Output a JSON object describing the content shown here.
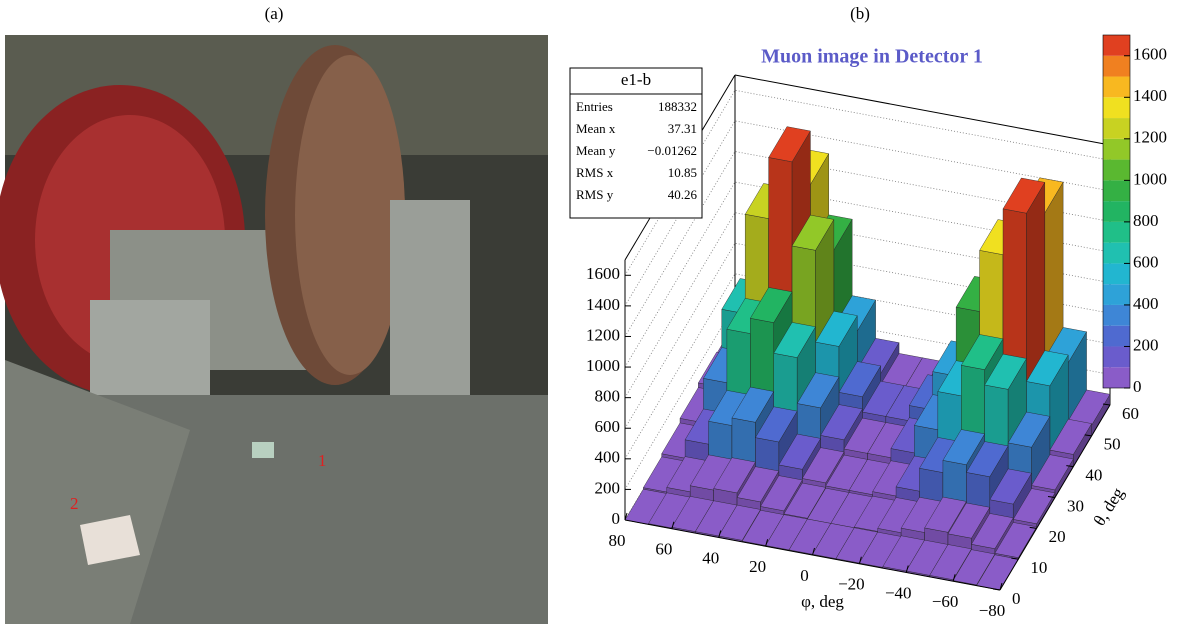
{
  "panel_a": {
    "label": "(a)",
    "markers": [
      "1",
      "2"
    ]
  },
  "chart_data": {
    "type": "lego",
    "panel_label": "(b)",
    "title": "Muon image in Detector 1",
    "x_label": "φ, deg",
    "y_label": "θ, deg",
    "x_bins": [
      80,
      70,
      60,
      50,
      40,
      30,
      20,
      10,
      0,
      -10,
      -20,
      -30,
      -40,
      -50,
      -60,
      -70,
      -80
    ],
    "y_bins": [
      0,
      10,
      20,
      30,
      40,
      50,
      60
    ],
    "values": [
      [
        0,
        5,
        10,
        10,
        10,
        5,
        5,
        5,
        5,
        5,
        5,
        10,
        10,
        10,
        5,
        0
      ],
      [
        10,
        40,
        80,
        90,
        60,
        30,
        10,
        5,
        5,
        10,
        30,
        60,
        90,
        80,
        40,
        10
      ],
      [
        30,
        150,
        300,
        350,
        250,
        100,
        40,
        20,
        20,
        40,
        100,
        250,
        330,
        280,
        130,
        30
      ],
      [
        60,
        350,
        700,
        800,
        600,
        300,
        120,
        60,
        60,
        120,
        300,
        550,
        750,
        650,
        300,
        50
      ],
      [
        90,
        600,
        1250,
        1650,
        1100,
        500,
        200,
        100,
        100,
        200,
        450,
        900,
        1300,
        1600,
        500,
        80
      ],
      [
        80,
        500,
        1000,
        1300,
        900,
        400,
        150,
        80,
        80,
        150,
        350,
        700,
        1100,
        1400,
        450,
        70
      ]
    ],
    "xlim": [
      80,
      -80
    ],
    "ylim": [
      0,
      60
    ],
    "zlim": [
      0,
      1700
    ],
    "xticks": [
      80,
      60,
      40,
      20,
      0,
      {
        "value": -20,
        "label": "−20"
      },
      {
        "value": -40,
        "label": "−40"
      },
      {
        "value": -60,
        "label": "−60"
      },
      {
        "value": -80,
        "label": "−80"
      }
    ],
    "yticks": [
      0,
      10,
      20,
      30,
      40,
      50,
      60
    ],
    "zticks": [
      0,
      200,
      400,
      600,
      800,
      1000,
      1200,
      1400,
      1600
    ],
    "palette": [
      "#8a5cc8",
      "#6a5ccc",
      "#4f6ad0",
      "#3e86d6",
      "#2ea2d8",
      "#22b6d0",
      "#20c0b0",
      "#20bf88",
      "#22b462",
      "#34b044",
      "#5ab830",
      "#92c828",
      "#c8d222",
      "#f0e020",
      "#f8b820",
      "#f08020",
      "#e04020"
    ],
    "stats": {
      "name": "e1-b",
      "rows": [
        [
          "Entries",
          "188332"
        ],
        [
          "Mean x",
          "37.31"
        ],
        [
          "Mean y",
          "−0.01262"
        ],
        [
          "RMS x",
          "10.85"
        ],
        [
          "RMS y",
          "40.26"
        ]
      ]
    }
  }
}
